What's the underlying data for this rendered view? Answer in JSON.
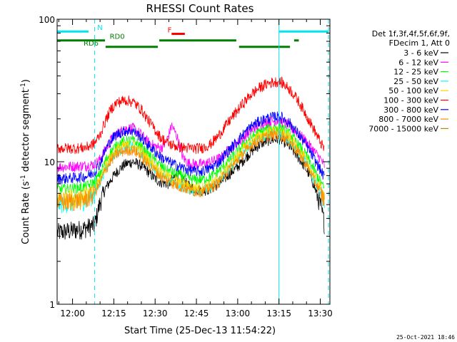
{
  "chart_data": {
    "type": "line",
    "title": "RHESSI Count Rates",
    "xlabel": "Start Time (25-Dec-13 11:54:22)",
    "ylabel_parts": [
      "Count Rate (s",
      "-1",
      " detector segment",
      "-1",
      ")"
    ],
    "y_scale": "log",
    "ylim": [
      1,
      100
    ],
    "y_ticks": [
      {
        "v": 1,
        "label": "1"
      },
      {
        "v": 10,
        "label": "10"
      },
      {
        "v": 100,
        "label": "100"
      }
    ],
    "x_ticks": [
      {
        "t": 0,
        "label": "12:00"
      },
      {
        "t": 15,
        "label": "12:15"
      },
      {
        "t": 30,
        "label": "12:30"
      },
      {
        "t": 45,
        "label": "12:45"
      },
      {
        "t": 60,
        "label": "13:00"
      },
      {
        "t": 75,
        "label": "13:15"
      },
      {
        "t": 90,
        "label": "13:30"
      }
    ],
    "xlim_minutes_from_1200": [
      -5.6,
      93.5
    ],
    "legend_header": [
      "Det 1f,3f,4f,5f,6f,9f,",
      "FDecim 1, Att 0"
    ],
    "series": [
      {
        "name": "3 - 6 keV",
        "color": "#000000",
        "points": [
          [
            -5.5,
            3.2
          ],
          [
            0,
            3.3
          ],
          [
            4,
            3.4
          ],
          [
            8,
            3.6
          ],
          [
            10,
            5.2
          ],
          [
            12,
            6.5
          ],
          [
            14,
            7.5
          ],
          [
            16,
            8.5
          ],
          [
            19,
            9.6
          ],
          [
            22,
            10.0
          ],
          [
            25,
            9.4
          ],
          [
            27,
            8.7
          ],
          [
            30,
            7.6
          ],
          [
            32,
            7.2
          ],
          [
            35,
            7.0
          ],
          [
            38,
            8.2
          ],
          [
            40,
            7.6
          ],
          [
            42,
            6.8
          ],
          [
            45,
            6.4
          ],
          [
            48,
            6.3
          ],
          [
            51,
            6.6
          ],
          [
            54,
            7.2
          ],
          [
            57,
            8.2
          ],
          [
            60,
            9.2
          ],
          [
            63,
            10.8
          ],
          [
            66,
            12.3
          ],
          [
            69,
            13.6
          ],
          [
            72,
            14.3
          ],
          [
            75,
            14.5
          ],
          [
            78,
            13.4
          ],
          [
            81,
            11.4
          ],
          [
            84,
            9.5
          ],
          [
            87,
            7.5
          ],
          [
            90,
            5.0
          ],
          [
            91.5,
            3.7
          ]
        ]
      },
      {
        "name": "6 - 12 keV",
        "color": "#ff00ff",
        "points": [
          [
            -5.5,
            9.2
          ],
          [
            0,
            9.3
          ],
          [
            5,
            9.4
          ],
          [
            8,
            9.6
          ],
          [
            10,
            10.4
          ],
          [
            12,
            12.3
          ],
          [
            14,
            14.3
          ],
          [
            16,
            15.7
          ],
          [
            19,
            17.0
          ],
          [
            22,
            17.2
          ],
          [
            25,
            15.5
          ],
          [
            27,
            14.0
          ],
          [
            30,
            12.8
          ],
          [
            32,
            12.5
          ],
          [
            34,
            13.6
          ],
          [
            36,
            18
          ],
          [
            38,
            15
          ],
          [
            40,
            10.8
          ],
          [
            42,
            9.8
          ],
          [
            45,
            9.6
          ],
          [
            48,
            9.7
          ],
          [
            51,
            10.1
          ],
          [
            54,
            10.7
          ],
          [
            57,
            12.3
          ],
          [
            60,
            13.6
          ],
          [
            63,
            15.4
          ],
          [
            66,
            17.2
          ],
          [
            69,
            18.6
          ],
          [
            72,
            19.2
          ],
          [
            75,
            19.5
          ],
          [
            78,
            18.3
          ],
          [
            81,
            16.4
          ],
          [
            84,
            14.5
          ],
          [
            87,
            12.4
          ],
          [
            90,
            10.5
          ],
          [
            91.5,
            9.4
          ]
        ]
      },
      {
        "name": "12 - 25 keV",
        "color": "#00ff00",
        "points": [
          [
            -5.5,
            6.4
          ],
          [
            0,
            6.5
          ],
          [
            5,
            6.7
          ],
          [
            8,
            7.2
          ],
          [
            10,
            8.2
          ],
          [
            12,
            10.2
          ],
          [
            14,
            11.8
          ],
          [
            16,
            13.1
          ],
          [
            19,
            14.0
          ],
          [
            22,
            14.1
          ],
          [
            25,
            12.8
          ],
          [
            27,
            11.5
          ],
          [
            30,
            10.2
          ],
          [
            32,
            9.3
          ],
          [
            35,
            8.6
          ],
          [
            38,
            8.2
          ],
          [
            41,
            7.8
          ],
          [
            44,
            7.5
          ],
          [
            47,
            7.5
          ],
          [
            50,
            7.8
          ],
          [
            53,
            8.6
          ],
          [
            56,
            9.9
          ],
          [
            59,
            11.3
          ],
          [
            62,
            13.1
          ],
          [
            65,
            14.9
          ],
          [
            68,
            16.1
          ],
          [
            71,
            17.0
          ],
          [
            74,
            17.5
          ],
          [
            76,
            17.2
          ],
          [
            79,
            15.6
          ],
          [
            82,
            13.2
          ],
          [
            85,
            11.0
          ],
          [
            88,
            8.6
          ],
          [
            90,
            7.3
          ],
          [
            91.5,
            6.4
          ]
        ]
      },
      {
        "name": "25 - 50 keV",
        "color": "#00ffff",
        "points": [
          [
            -5.5,
            5.1
          ],
          [
            0,
            5.2
          ],
          [
            5,
            5.4
          ],
          [
            8,
            6.0
          ],
          [
            10,
            7.2
          ],
          [
            12,
            9.1
          ],
          [
            14,
            10.6
          ],
          [
            16,
            11.8
          ],
          [
            19,
            12.6
          ],
          [
            22,
            12.7
          ],
          [
            25,
            11.4
          ],
          [
            27,
            10.2
          ],
          [
            30,
            9.0
          ],
          [
            32,
            8.1
          ],
          [
            35,
            7.4
          ],
          [
            38,
            7.0
          ],
          [
            41,
            6.6
          ],
          [
            44,
            6.3
          ],
          [
            47,
            6.3
          ],
          [
            50,
            6.6
          ],
          [
            53,
            7.3
          ],
          [
            56,
            8.6
          ],
          [
            59,
            10.0
          ],
          [
            62,
            11.7
          ],
          [
            65,
            13.5
          ],
          [
            68,
            14.7
          ],
          [
            71,
            15.6
          ],
          [
            74,
            16.1
          ],
          [
            76,
            15.8
          ],
          [
            79,
            14.2
          ],
          [
            82,
            11.9
          ],
          [
            85,
            9.7
          ],
          [
            88,
            7.4
          ],
          [
            90,
            6.2
          ],
          [
            91.5,
            5.3
          ]
        ]
      },
      {
        "name": "50 - 100 keV",
        "color": "#ffd700",
        "points": [
          [
            -5.5,
            5.5
          ],
          [
            0,
            5.6
          ],
          [
            5,
            5.8
          ],
          [
            8,
            6.4
          ],
          [
            10,
            7.6
          ],
          [
            12,
            9.5
          ],
          [
            14,
            11.0
          ],
          [
            16,
            12.2
          ],
          [
            19,
            13.0
          ],
          [
            22,
            13.1
          ],
          [
            25,
            11.8
          ],
          [
            27,
            10.6
          ],
          [
            30,
            9.4
          ],
          [
            32,
            8.5
          ],
          [
            35,
            7.8
          ],
          [
            38,
            7.3
          ],
          [
            41,
            6.9
          ],
          [
            44,
            6.6
          ],
          [
            47,
            6.6
          ],
          [
            50,
            6.9
          ],
          [
            53,
            7.6
          ],
          [
            56,
            9.0
          ],
          [
            59,
            10.4
          ],
          [
            62,
            12.2
          ],
          [
            65,
            14.0
          ],
          [
            68,
            15.2
          ],
          [
            71,
            16.1
          ],
          [
            74,
            16.6
          ],
          [
            76,
            16.3
          ],
          [
            79,
            14.7
          ],
          [
            82,
            12.3
          ],
          [
            85,
            10.1
          ],
          [
            88,
            7.8
          ],
          [
            90,
            6.6
          ],
          [
            91.5,
            5.7
          ]
        ]
      },
      {
        "name": "100 - 300 keV",
        "color": "#ff0000",
        "points": [
          [
            -5.5,
            12.5
          ],
          [
            0,
            12.4
          ],
          [
            5,
            12.6
          ],
          [
            8,
            13.5
          ],
          [
            10,
            15.5
          ],
          [
            12,
            19.5
          ],
          [
            14,
            23.5
          ],
          [
            16,
            26.0
          ],
          [
            19,
            27.2
          ],
          [
            22,
            26.3
          ],
          [
            25,
            23.3
          ],
          [
            27,
            20.2
          ],
          [
            30,
            16.8
          ],
          [
            32,
            14.8
          ],
          [
            35,
            13.4
          ],
          [
            38,
            12.8
          ],
          [
            41,
            12.5
          ],
          [
            44,
            12.4
          ],
          [
            47,
            12.5
          ],
          [
            50,
            13.2
          ],
          [
            53,
            15.2
          ],
          [
            56,
            18.3
          ],
          [
            59,
            21.8
          ],
          [
            62,
            25.8
          ],
          [
            65,
            29.8
          ],
          [
            68,
            33.2
          ],
          [
            71,
            35.5
          ],
          [
            74,
            36.5
          ],
          [
            76,
            36.0
          ],
          [
            79,
            32.2
          ],
          [
            82,
            26.8
          ],
          [
            85,
            21.2
          ],
          [
            88,
            16.4
          ],
          [
            90,
            13.8
          ],
          [
            91.5,
            12.2
          ]
        ]
      },
      {
        "name": "300 - 800 keV",
        "color": "#0000ff",
        "points": [
          [
            -5.5,
            7.6
          ],
          [
            0,
            7.7
          ],
          [
            5,
            7.9
          ],
          [
            8,
            8.5
          ],
          [
            10,
            9.8
          ],
          [
            12,
            12.2
          ],
          [
            14,
            14.2
          ],
          [
            16,
            15.6
          ],
          [
            19,
            16.5
          ],
          [
            22,
            16.5
          ],
          [
            25,
            14.8
          ],
          [
            27,
            13.4
          ],
          [
            30,
            11.8
          ],
          [
            32,
            10.8
          ],
          [
            35,
            10.0
          ],
          [
            38,
            9.4
          ],
          [
            41,
            8.9
          ],
          [
            44,
            8.6
          ],
          [
            47,
            8.6
          ],
          [
            50,
            9.0
          ],
          [
            53,
            9.9
          ],
          [
            56,
            11.6
          ],
          [
            59,
            13.4
          ],
          [
            62,
            15.6
          ],
          [
            65,
            17.8
          ],
          [
            68,
            19.3
          ],
          [
            71,
            20.3
          ],
          [
            74,
            20.8
          ],
          [
            76,
            20.5
          ],
          [
            79,
            18.6
          ],
          [
            82,
            15.7
          ],
          [
            85,
            13.0
          ],
          [
            88,
            10.3
          ],
          [
            90,
            8.8
          ],
          [
            91.5,
            7.8
          ]
        ]
      },
      {
        "name": "800 - 7000 keV",
        "color": "#ff8c00",
        "points": [
          [
            -5.5,
            5.2
          ],
          [
            0,
            5.3
          ],
          [
            5,
            5.5
          ],
          [
            8,
            6.0
          ],
          [
            10,
            7.1
          ],
          [
            12,
            8.8
          ],
          [
            14,
            10.2
          ],
          [
            16,
            11.3
          ],
          [
            19,
            12.0
          ],
          [
            22,
            12.1
          ],
          [
            25,
            10.9
          ],
          [
            27,
            9.8
          ],
          [
            30,
            8.7
          ],
          [
            32,
            7.9
          ],
          [
            35,
            7.3
          ],
          [
            38,
            6.8
          ],
          [
            41,
            6.5
          ],
          [
            44,
            6.2
          ],
          [
            47,
            6.2
          ],
          [
            50,
            6.5
          ],
          [
            53,
            7.2
          ],
          [
            56,
            8.4
          ],
          [
            59,
            9.8
          ],
          [
            62,
            11.4
          ],
          [
            65,
            13.1
          ],
          [
            68,
            14.3
          ],
          [
            71,
            15.1
          ],
          [
            74,
            15.5
          ],
          [
            76,
            15.2
          ],
          [
            79,
            13.8
          ],
          [
            82,
            11.6
          ],
          [
            85,
            9.5
          ],
          [
            88,
            7.3
          ],
          [
            90,
            6.2
          ],
          [
            91.5,
            5.4
          ]
        ]
      },
      {
        "name": "7000 - 15000 keV",
        "color": "#b8860b",
        "points": []
      }
    ],
    "annotations": {
      "vertical_lines_solid": [
        -5.6,
        75.0
      ],
      "vertical_lines_dashed": [
        8.0,
        93.0
      ],
      "flag_rows": [
        {
          "color": "#00e5ee",
          "y_value": 82,
          "segments": [
            [
              -5.6,
              5.8
            ],
            [
              75.0,
              93.0
            ]
          ],
          "labels": [
            {
              "text": "N",
              "t": 9.0
            }
          ]
        },
        {
          "color": "#ff0000",
          "y_value": 79,
          "segments": [
            [
              36.0,
              40.8
            ]
          ],
          "labels": [
            {
              "text": "F",
              "t": 34.5
            }
          ]
        },
        {
          "color": "#007f00",
          "y_value": 71,
          "segments": [
            [
              -5.6,
              11.8
            ],
            [
              31.5,
              59.5
            ],
            [
              80.5,
              82.2
            ]
          ],
          "labels": [
            {
              "text": "RD0",
              "t": 13.5
            }
          ]
        },
        {
          "color": "#007f00",
          "y_value": 64,
          "segments": [
            [
              12.0,
              31.0
            ],
            [
              60.5,
              79.0
            ]
          ],
          "labels": [
            {
              "text": "RD6",
              "t": 4.0
            }
          ]
        }
      ]
    }
  },
  "footer": {
    "timestamp": "25-Oct-2021 18:46"
  }
}
